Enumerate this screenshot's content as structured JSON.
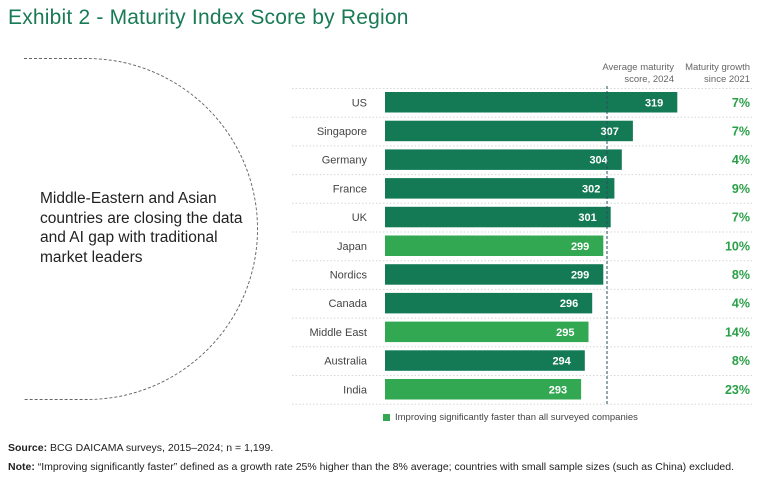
{
  "title": "Exhibit 2 - Maturity Index Score by Region",
  "callout": "Middle-Eastern and Asian countries are closing the data and AI gap with traditional market leaders",
  "column_headers": {
    "score_line1": "Average maturity",
    "score_line2": "score, 2024",
    "growth_line1": "Maturity growth",
    "growth_line2": "since 2021"
  },
  "legend": {
    "label": "Improving significantly faster than all surveyed companies"
  },
  "colors": {
    "dark_bar": "#147a56",
    "light_bar": "#32a852",
    "growth_text": "#29a047",
    "title": "#197a56"
  },
  "footer": {
    "source_label": "Source:",
    "source_text": "BCG DAICAMA surveys, 2015–2024; n = 1,199.",
    "note_label": "Note:",
    "note_text": "“Improving significantly faster” defined as a growth rate 25% higher than the 8% average; countries with small sample sizes (such as China) excluded."
  },
  "chart_data": {
    "type": "bar",
    "orientation": "horizontal",
    "title": "Exhibit 2 - Maturity Index Score by Region",
    "categories": [
      "US",
      "Singapore",
      "Germany",
      "France",
      "UK",
      "Japan",
      "Nordics",
      "Canada",
      "Middle East",
      "Australia",
      "India"
    ],
    "values": [
      319,
      307,
      304,
      302,
      301,
      299,
      299,
      296,
      295,
      294,
      293
    ],
    "growth": [
      "7%",
      "7%",
      "4%",
      "9%",
      "7%",
      "10%",
      "8%",
      "4%",
      "14%",
      "8%",
      "23%"
    ],
    "highlight": [
      false,
      false,
      false,
      false,
      false,
      true,
      false,
      false,
      true,
      false,
      true
    ],
    "average_line": 300,
    "xlim": [
      240,
      320
    ]
  }
}
